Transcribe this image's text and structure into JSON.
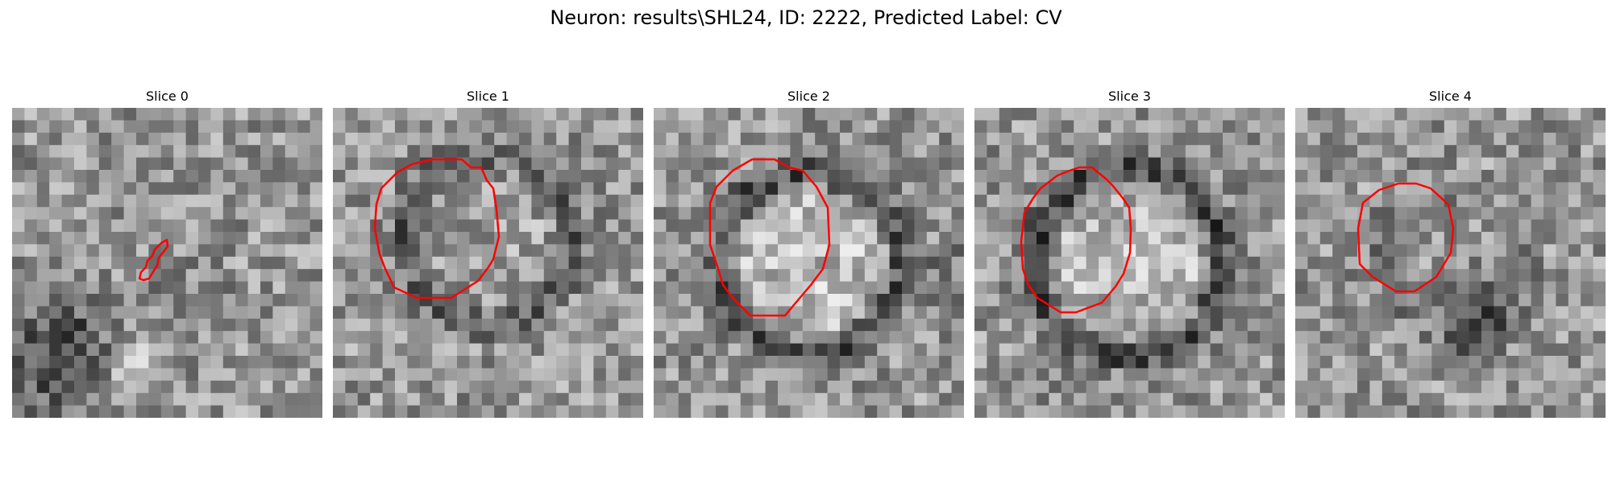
{
  "figure": {
    "title": "Neuron: results\\SHL24, ID: 2222, Predicted Label: CV"
  },
  "contour_color": "#ff0000",
  "slices": [
    {
      "title": "Slice 0"
    },
    {
      "title": "Slice 1"
    },
    {
      "title": "Slice 2"
    },
    {
      "title": "Slice 3"
    },
    {
      "title": "Slice 4"
    }
  ]
}
